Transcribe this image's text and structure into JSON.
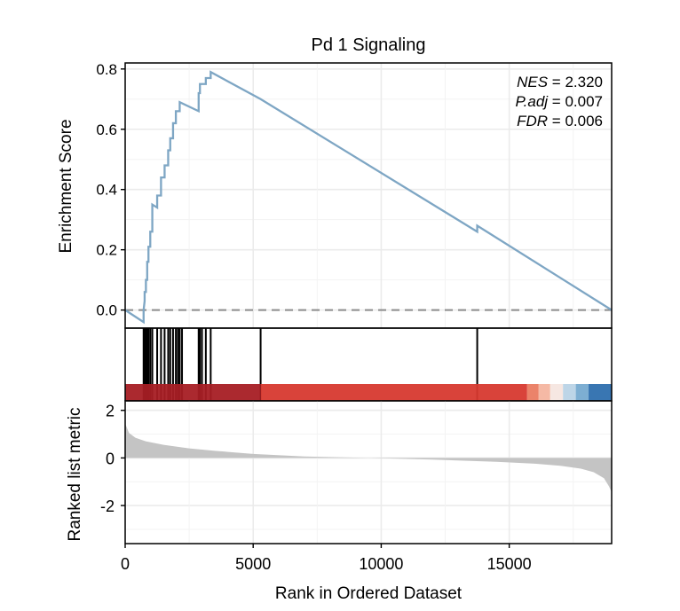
{
  "chart_data": {
    "type": "line",
    "title": "Pd 1 Signaling",
    "xlabel": "Rank in Ordered Dataset",
    "xlim": [
      0,
      19000
    ],
    "x_ticks": [
      0,
      5000,
      10000,
      15000
    ],
    "x_tick_labels": [
      "0",
      "5000",
      "10000",
      "15000"
    ],
    "grid": true,
    "es_panel": {
      "ylabel": "Enrichment Score",
      "ylim": [
        -0.06,
        0.82
      ],
      "y_ticks": [
        0.0,
        0.2,
        0.4,
        0.6,
        0.8
      ],
      "y_tick_labels": [
        "0.0",
        "0.2",
        "0.4",
        "0.6",
        "0.8"
      ],
      "series_color": "#7ea6c4",
      "zero_line_color": "#8c8c8c",
      "stats": [
        {
          "key": "NES",
          "value": "= 2.320"
        },
        {
          "key": "P.adj",
          "value": "= 0.007"
        },
        {
          "key": "FDR",
          "value": "= 0.006"
        }
      ],
      "hits": [
        720,
        760,
        810,
        860,
        910,
        980,
        1060,
        1250,
        1400,
        1540,
        1680,
        1760,
        1870,
        1980,
        2060,
        2130,
        2220,
        2870,
        2920,
        3000,
        3150,
        3340,
        5290,
        13750
      ],
      "running_es": [
        [
          0,
          0.0
        ],
        [
          720,
          -0.04
        ],
        [
          720,
          0.0
        ],
        [
          760,
          0.03
        ],
        [
          760,
          0.06
        ],
        [
          810,
          0.06
        ],
        [
          810,
          0.1
        ],
        [
          860,
          0.1
        ],
        [
          860,
          0.16
        ],
        [
          910,
          0.16
        ],
        [
          910,
          0.21
        ],
        [
          980,
          0.21
        ],
        [
          980,
          0.26
        ],
        [
          1060,
          0.26
        ],
        [
          1060,
          0.35
        ],
        [
          1250,
          0.34
        ],
        [
          1250,
          0.38
        ],
        [
          1400,
          0.38
        ],
        [
          1400,
          0.44
        ],
        [
          1540,
          0.44
        ],
        [
          1540,
          0.48
        ],
        [
          1680,
          0.48
        ],
        [
          1680,
          0.53
        ],
        [
          1760,
          0.53
        ],
        [
          1760,
          0.57
        ],
        [
          1870,
          0.57
        ],
        [
          1870,
          0.62
        ],
        [
          1980,
          0.62
        ],
        [
          1980,
          0.66
        ],
        [
          2130,
          0.66
        ],
        [
          2130,
          0.69
        ],
        [
          2870,
          0.66
        ],
        [
          2870,
          0.72
        ],
        [
          2920,
          0.72
        ],
        [
          2920,
          0.75
        ],
        [
          3150,
          0.75
        ],
        [
          3150,
          0.77
        ],
        [
          3340,
          0.77
        ],
        [
          3340,
          0.79
        ],
        [
          5290,
          0.7
        ],
        [
          5290,
          0.7
        ],
        [
          13750,
          0.26
        ],
        [
          13750,
          0.28
        ],
        [
          19000,
          0.0
        ]
      ]
    },
    "color_bar": [
      {
        "from": 0,
        "to": 5300,
        "color": "#a61e24"
      },
      {
        "from": 5300,
        "to": 15700,
        "color": "#d7392f"
      },
      {
        "from": 15700,
        "to": 16150,
        "color": "#ea7c62"
      },
      {
        "from": 16150,
        "to": 16600,
        "color": "#f4b5a0"
      },
      {
        "from": 16600,
        "to": 17100,
        "color": "#f6e6e0"
      },
      {
        "from": 17100,
        "to": 17600,
        "color": "#b9d3e6"
      },
      {
        "from": 17600,
        "to": 18100,
        "color": "#76aad0"
      },
      {
        "from": 18100,
        "to": 19000,
        "color": "#2e6fae"
      }
    ],
    "rank_panel": {
      "ylabel": "Ranked list metric",
      "ylim": [
        -3.6,
        2.4
      ],
      "y_ticks": [
        2,
        0,
        -2
      ],
      "y_tick_labels": [
        "2",
        "0",
        "-2"
      ],
      "fill_color": "#c4c4c4",
      "metric": [
        [
          0,
          1.45
        ],
        [
          150,
          1.05
        ],
        [
          400,
          0.85
        ],
        [
          800,
          0.7
        ],
        [
          1500,
          0.55
        ],
        [
          2500,
          0.4
        ],
        [
          3500,
          0.3
        ],
        [
          5000,
          0.17
        ],
        [
          7000,
          0.06
        ],
        [
          9500,
          0.0
        ],
        [
          12000,
          -0.07
        ],
        [
          14500,
          -0.16
        ],
        [
          16000,
          -0.24
        ],
        [
          17000,
          -0.33
        ],
        [
          17800,
          -0.45
        ],
        [
          18300,
          -0.6
        ],
        [
          18700,
          -0.85
        ],
        [
          18900,
          -1.2
        ],
        [
          19000,
          -1.45
        ]
      ]
    }
  }
}
